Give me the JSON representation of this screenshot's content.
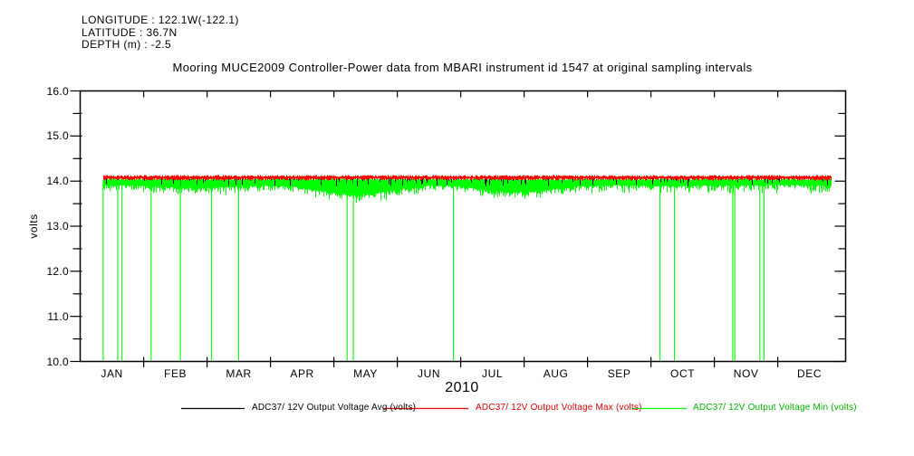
{
  "window": {
    "background": "#ffffff"
  },
  "header": {
    "longitude": "LONGITUDE : 122.1W(-122.1)",
    "latitude": "LATITUDE : 36.7N",
    "depth": "DEPTH (m) : -2.5"
  },
  "title": "Mooring MUCE2009 Controller-Power data from MBARI instrument id 1547 at original sampling intervals",
  "chart_data": {
    "type": "line",
    "title": "Mooring MUCE2009 Controller-Power data from MBARI instrument id 1547 at original sampling intervals",
    "ylabel": "volts",
    "xlabel": "2010",
    "ylim": [
      10.0,
      16.0
    ],
    "ytick_labels": [
      "10.0",
      "11.0",
      "12.0",
      "13.0",
      "14.0",
      "15.0",
      "16.0"
    ],
    "y_minor_tick_step": 0.5,
    "months": [
      "JAN",
      "FEB",
      "MAR",
      "APR",
      "MAY",
      "JUN",
      "JUL",
      "AUG",
      "SEP",
      "OCT",
      "NOV",
      "DEC"
    ],
    "grid": false,
    "legend_position": "bottom",
    "data_day_range": [
      11,
      360
    ],
    "series": [
      {
        "name": "ADC37/ 12V Output Voltage Avg (volts)",
        "color": "#000000",
        "monthly_values": [
          14.05,
          14.05,
          14.05,
          14.05,
          14.05,
          14.05,
          14.05,
          14.05,
          14.05,
          14.05,
          14.05,
          14.05
        ]
      },
      {
        "name": "ADC37/ 12V Output Voltage Max (volts)",
        "color": "#ff0000",
        "monthly_values": [
          14.1,
          14.1,
          14.1,
          14.1,
          14.1,
          14.1,
          14.1,
          14.1,
          14.1,
          14.1,
          14.1,
          14.1
        ]
      },
      {
        "name": "ADC37/ 12V Output Voltage Min (volts)",
        "color": "#00ff00",
        "monthly_floor_values": [
          13.6,
          13.6,
          13.65,
          13.7,
          13.65,
          13.7,
          13.75,
          13.75,
          13.7,
          13.6,
          13.6,
          13.7
        ],
        "dropout_value": 10.0,
        "dropout_days_of_year": [
          11,
          18,
          20,
          34,
          48,
          63,
          76,
          128,
          131,
          179,
          278,
          285,
          313,
          314,
          326,
          328
        ],
        "dropout_dates_approx": [
          "Jan 12",
          "Jan 19",
          "Jan 21",
          "Feb 4",
          "Feb 18",
          "Mar 5",
          "Mar 18",
          "May 9",
          "May 12",
          "Jun 29",
          "Oct 6",
          "Oct 13",
          "Nov 10",
          "Nov 11",
          "Nov 23",
          "Nov 25"
        ]
      }
    ]
  },
  "legend": {
    "entries": [
      {
        "label": "ADC37/ 12V Output Voltage Avg (volts)",
        "line_color": "#000000",
        "text_color": "#000000"
      },
      {
        "label": "ADC37/ 12V Output Voltage Max (volts)",
        "line_color": "#ff0000",
        "text_color": "#dd0000"
      },
      {
        "label": "ADC37/ 12V Output Voltage Min (volts)",
        "line_color": "#00ff00",
        "text_color": "#00b400"
      }
    ]
  }
}
